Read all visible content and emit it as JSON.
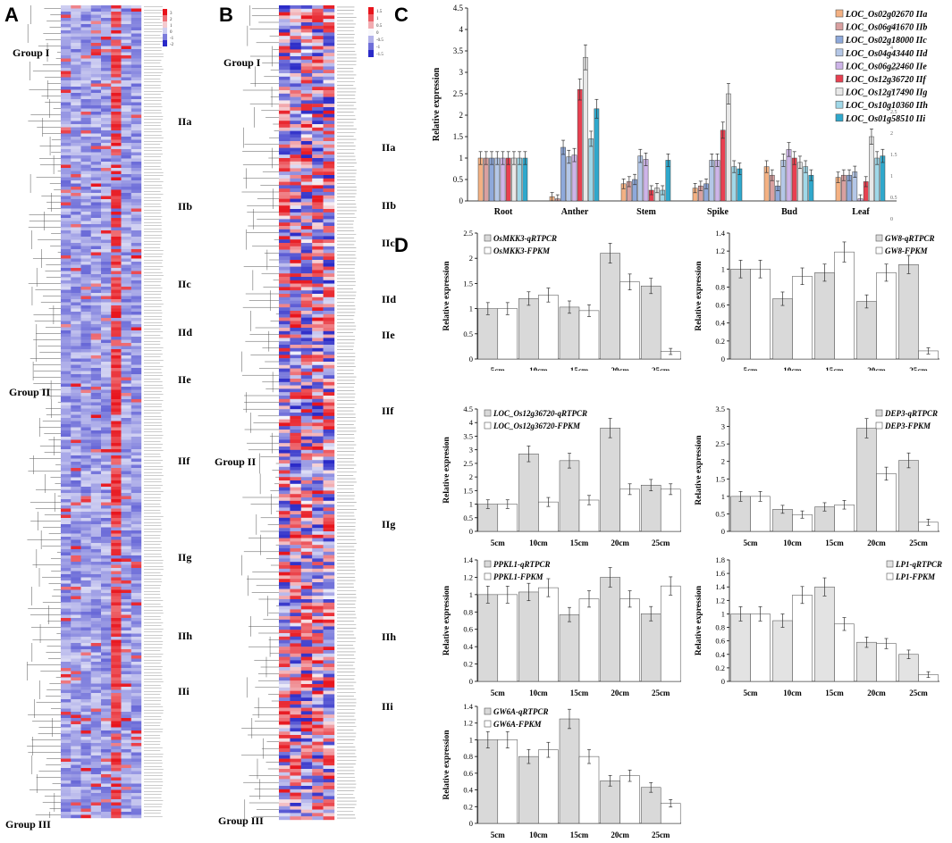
{
  "panels": {
    "a": "A",
    "b": "B",
    "c": "C",
    "d": "D"
  },
  "heatmap_a": {
    "groups": [
      {
        "label": "Group I"
      },
      {
        "label": "IIa"
      },
      {
        "label": "IIb"
      },
      {
        "label": "IIc"
      },
      {
        "label": "IId"
      },
      {
        "label": "Group II"
      },
      {
        "label": "IIe"
      },
      {
        "label": "IIf"
      },
      {
        "label": "IIg"
      },
      {
        "label": "IIh"
      },
      {
        "label": "IIi"
      },
      {
        "label": "Group III"
      }
    ],
    "legend_ticks": [
      "3",
      "2",
      "1",
      "0",
      "-1",
      "-2"
    ],
    "colors": {
      "high": "#e8141c",
      "mid": "#f8f8fc",
      "low": "#2a2ac8"
    }
  },
  "heatmap_b": {
    "groups": [
      {
        "label": "Group I"
      },
      {
        "label": "IIa"
      },
      {
        "label": "IIb"
      },
      {
        "label": "IIc"
      },
      {
        "label": "IId"
      },
      {
        "label": "IIe"
      },
      {
        "label": "IIf"
      },
      {
        "label": "Group II"
      },
      {
        "label": "IIg"
      },
      {
        "label": "IIh"
      },
      {
        "label": "IIi"
      },
      {
        "label": "Group III"
      }
    ],
    "legend_ticks": [
      "1.5",
      "1",
      "0.5",
      "0",
      "-0.5",
      "-1",
      "-1.5"
    ]
  },
  "chart_data": [
    {
      "id": "C",
      "type": "bar",
      "title": "",
      "xlabel": "",
      "ylabel": "Relative expression",
      "ylim": [
        0,
        4.5
      ],
      "yticks": [
        "0",
        "0.5",
        "1",
        "1.5",
        "2",
        "2.5",
        "3",
        "3.5",
        "4",
        "4.5"
      ],
      "categories": [
        "Root",
        "Anther",
        "Stem",
        "Spike",
        "Bud",
        "Leaf"
      ],
      "series": [
        {
          "name": "LOC_Os02g02670 IIa",
          "color": "#f4b183",
          "values": [
            1.0,
            0.1,
            0.4,
            0.3,
            0.8,
            0.55
          ]
        },
        {
          "name": "LOC_Os06g41670 IIb",
          "color": "#d9a0a0",
          "values": [
            1.0,
            0.05,
            0.45,
            0.35,
            0.6,
            0.6
          ]
        },
        {
          "name": "LOC_Os02g18000 IIc",
          "color": "#8ea9db",
          "values": [
            1.0,
            1.25,
            0.5,
            0.4,
            0.35,
            0.6
          ]
        },
        {
          "name": "LOC_Os04g43440 IId",
          "color": "#b4c7e7",
          "values": [
            1.0,
            1.03,
            1.05,
            0.95,
            0.95,
            0.68
          ]
        },
        {
          "name": "LOC_Os06g22460 IIe",
          "color": "#cdb4e8",
          "values": [
            1.0,
            1.07,
            0.97,
            0.95,
            1.2,
            0.05
          ]
        },
        {
          "name": "LOC_Os12g36720 IIf",
          "color": "#e84050",
          "values": [
            1.0,
            2.6,
            0.25,
            1.65,
            1.0,
            0.45
          ]
        },
        {
          "name": "LOC_Os12g17490 IIg",
          "color": "#e8e8e8",
          "values": [
            1.0,
            3.35,
            0.3,
            2.5,
            0.9,
            1.5
          ]
        },
        {
          "name": "LOC_Os10g10360 IIh",
          "color": "#a0d8e8",
          "values": [
            1.0,
            1.45,
            0.25,
            0.8,
            0.8,
            1.0
          ]
        },
        {
          "name": "LOC_Os01g58510 IIi",
          "color": "#2fa8cc",
          "values": [
            1.0,
            2.15,
            0.95,
            0.75,
            0.6,
            1.05
          ]
        }
      ],
      "extra_ticks": [
        "4.5",
        "4",
        "3.5",
        "3",
        "2.5",
        "2",
        "1.5",
        "1",
        "0.5",
        "0",
        "-0.5"
      ]
    },
    {
      "id": "D-OsMKK3",
      "type": "bar",
      "ylabel": "Relative expression",
      "ylim": [
        0,
        2.5
      ],
      "yticks": [
        "0",
        "0.5",
        "1",
        "1.5",
        "2",
        "2.5"
      ],
      "categories": [
        "5cm",
        "10cm",
        "15cm",
        "20cm",
        "25cm"
      ],
      "series": [
        {
          "name": "OsMKK3-qRTPCR",
          "color": "#d9d9d9",
          "values": [
            1.0,
            1.2,
            1.03,
            2.1,
            1.45
          ]
        },
        {
          "name": "OsMKK3-FPKM",
          "color": "#ffffff",
          "values": [
            1.0,
            1.27,
            0.96,
            1.53,
            0.15
          ]
        }
      ]
    },
    {
      "id": "D-GW8",
      "type": "bar",
      "ylabel": "Relative expression",
      "ylim": [
        0,
        1.4
      ],
      "yticks": [
        "0",
        "0.2",
        "0.4",
        "0.6",
        "0.8",
        "1",
        "1.2",
        "1.4"
      ],
      "categories": [
        "5cm",
        "10cm",
        "15cm",
        "20cm",
        "25cm"
      ],
      "series": [
        {
          "name": "GW8-qRTPCR",
          "color": "#d9d9d9",
          "values": [
            1.0,
            0.67,
            0.96,
            0.64,
            1.05
          ]
        },
        {
          "name": "GW8-FPKM",
          "color": "#ffffff",
          "values": [
            1.0,
            0.92,
            1.19,
            0.96,
            0.09
          ]
        }
      ]
    },
    {
      "id": "D-LOC_Os12g36720",
      "type": "bar",
      "ylabel": "Relative expresion",
      "ylim": [
        0,
        4.5
      ],
      "yticks": [
        "0",
        "0.5",
        "1",
        "1.5",
        "2",
        "2.5",
        "3",
        "3.5",
        "4",
        "4.5"
      ],
      "categories": [
        "5cm",
        "10cm",
        "15cm",
        "20cm",
        "25cm"
      ],
      "series": [
        {
          "name": "LOC_Os12g36720-qRTPCR",
          "color": "#d9d9d9",
          "values": [
            1.0,
            2.85,
            2.6,
            3.8,
            1.7
          ]
        },
        {
          "name": "LOC_Os12g36720-FPKM",
          "color": "#ffffff",
          "values": [
            1.0,
            1.08,
            1.15,
            1.55,
            1.55
          ]
        }
      ]
    },
    {
      "id": "D-DEP3",
      "type": "bar",
      "ylabel": "Relative expression",
      "ylim": [
        0,
        3.5
      ],
      "yticks": [
        "0",
        "0.5",
        "1",
        "1.5",
        "2",
        "2.5",
        "3",
        "3.5"
      ],
      "categories": [
        "5cm",
        "10cm",
        "15cm",
        "20cm",
        "25cm"
      ],
      "series": [
        {
          "name": "DEP3-qRTPCR",
          "color": "#d9d9d9",
          "values": [
            1.0,
            0.63,
            0.7,
            2.95,
            2.03
          ]
        },
        {
          "name": "DEP3-FPKM",
          "color": "#ffffff",
          "values": [
            1.0,
            0.48,
            0.76,
            1.65,
            0.26
          ]
        }
      ]
    },
    {
      "id": "D-PPKL1",
      "type": "bar",
      "ylabel": "Relative expression",
      "ylim": [
        0,
        1.4
      ],
      "yticks": [
        "0",
        "0.2",
        "0.4",
        "0.6",
        "0.8",
        "1",
        "1.2",
        "1.4"
      ],
      "categories": [
        "5cm",
        "10cm",
        "15cm",
        "20cm",
        "25cm"
      ],
      "series": [
        {
          "name": "PPKL1-qRTPCR",
          "color": "#d9d9d9",
          "values": [
            1.0,
            1.03,
            0.77,
            1.2,
            0.78
          ]
        },
        {
          "name": "PPKL1-FPKM",
          "color": "#ffffff",
          "values": [
            1.0,
            1.08,
            0.95,
            0.95,
            1.1
          ]
        }
      ]
    },
    {
      "id": "D-LP1",
      "type": "bar",
      "ylabel": "Relative expression",
      "ylim": [
        0,
        1.8
      ],
      "yticks": [
        "0",
        "0.2",
        "0.4",
        "0.6",
        "0.8",
        "1",
        "1.2",
        "1.4",
        "1.6",
        "1.8"
      ],
      "categories": [
        "5cm",
        "10cm",
        "15cm",
        "20cm",
        "25cm"
      ],
      "series": [
        {
          "name": "LP1-qRTPCR",
          "color": "#e3e3e3",
          "values": [
            1.0,
            0.9,
            1.4,
            0.58,
            0.4
          ]
        },
        {
          "name": "LP1-FPKM",
          "color": "#ffffff",
          "values": [
            1.0,
            1.28,
            0.85,
            0.56,
            0.1
          ]
        }
      ]
    },
    {
      "id": "D-GW6A",
      "type": "bar",
      "ylabel": "Relative expression",
      "ylim": [
        0,
        1.4
      ],
      "yticks": [
        "0",
        "0.2",
        "0.4",
        "0.6",
        "0.8",
        "1",
        "1.2",
        "1.4"
      ],
      "categories": [
        "5cm",
        "10cm",
        "15cm",
        "20cm",
        "25cm"
      ],
      "series": [
        {
          "name": "GW6A-qRTPCR",
          "color": "#d9d9d9",
          "values": [
            1.0,
            0.8,
            1.25,
            0.51,
            0.43
          ]
        },
        {
          "name": "GW6A-FPKM",
          "color": "#ffffff",
          "values": [
            1.0,
            0.88,
            0.8,
            0.57,
            0.24
          ]
        }
      ]
    }
  ]
}
